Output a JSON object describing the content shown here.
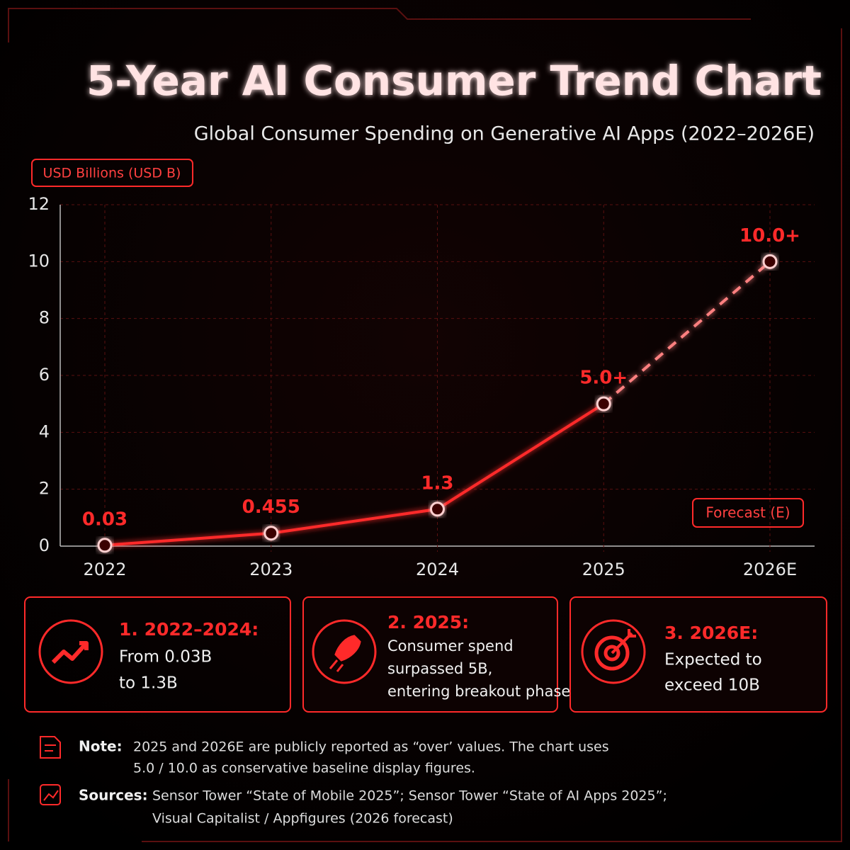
{
  "chart_data": {
    "type": "line",
    "title": "5-Year AI Consumer Trend Chart",
    "subtitle": "Global Consumer Spending on Generative AI Apps (2022–2026E)",
    "y_label": "USD Billions (USD B)",
    "annotation": "Forecast (E)",
    "categories": [
      "2022",
      "2023",
      "2024",
      "2025",
      "2026E"
    ],
    "values": [
      0.03,
      0.455,
      1.3,
      5.0,
      10.0
    ],
    "value_labels": [
      "0.03",
      "0.455",
      "1.3",
      "5.0+",
      "10.0+"
    ],
    "color": "#ff2a2a",
    "forecast_start_index": 3,
    "ylim": [
      0,
      12
    ],
    "yticks": [
      0,
      2,
      4,
      6,
      8,
      10,
      12
    ],
    "grid": true
  },
  "cards": [
    {
      "title": "1. 2022–2024:",
      "lines": [
        "From 0.03B",
        "to 1.3B"
      ]
    },
    {
      "title": "2. 2025:",
      "lines": [
        "Consumer spend",
        "surpassed 5B,",
        "entering breakout phase"
      ]
    },
    {
      "title": "3. 2026E:",
      "lines": [
        "Expected to",
        "exceed 10B"
      ]
    }
  ],
  "note": {
    "label": "Note:",
    "lines": [
      "2025 and 2026E are publicly reported as “over’ values. The chart uses",
      "5.0 / 10.0 as conservative baseline display figures."
    ]
  },
  "sources": {
    "label": "Sources:",
    "lines": [
      "Sensor Tower “State of Mobile 2025”;  Sensor Tower “State of AI Apps 2025”;",
      "Visual Capitalist / Appfigures  (2026 forecast)"
    ]
  }
}
